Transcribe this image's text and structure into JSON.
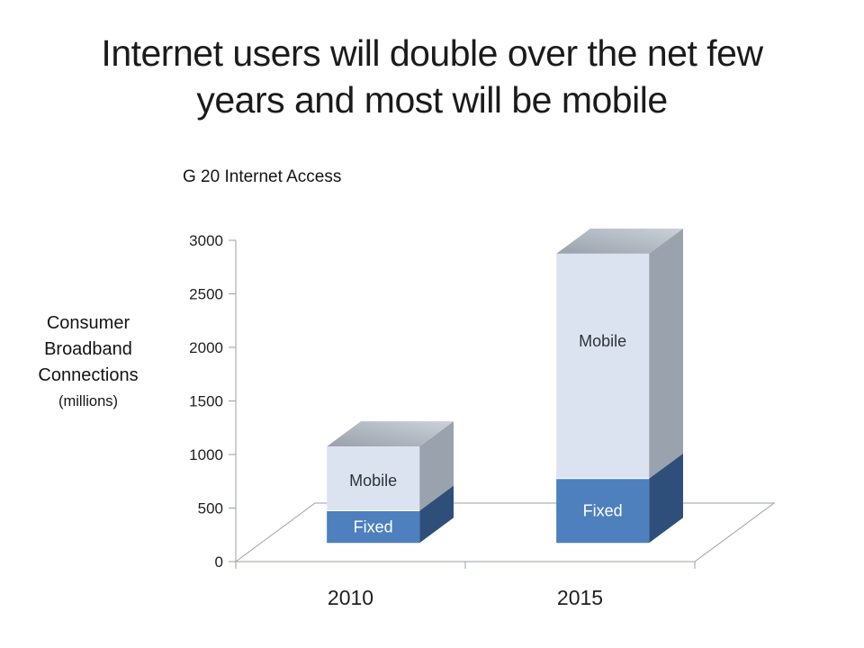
{
  "slide": {
    "title_lines": [
      "Internet users will double over the net few",
      "years and most will be mobile"
    ]
  },
  "chart": {
    "title": "G 20 Internet Access",
    "y_axis_title_lines": [
      "Consumer",
      "Broadband",
      "Connections",
      "(millions)"
    ]
  },
  "chart_data": {
    "type": "bar",
    "variant": "3d-stacked-column",
    "title": "G 20 Internet Access",
    "categories": [
      "2010",
      "2015"
    ],
    "series": [
      {
        "name": "Fixed",
        "values": [
          300,
          600
        ],
        "front_color": "#4d80bd",
        "side_color": "#2f4f7b",
        "label_color": "#ffffff"
      },
      {
        "name": "Mobile",
        "values": [
          600,
          2100
        ],
        "front_color": "#dce3f0",
        "side_color": "#99a2ad",
        "label_color": "#2e323a"
      }
    ],
    "totals": [
      900,
      2700
    ],
    "ylabel": "Consumer Broadband Connections (millions)",
    "ylim": [
      0,
      3000
    ],
    "yticks": [
      0,
      500,
      1000,
      1500,
      2000,
      2500,
      3000
    ],
    "legend": "none",
    "grid": false,
    "segment_labels_shown": true,
    "axis_line_color": "#9aa1a7",
    "text_color": "#1f1f1f"
  }
}
